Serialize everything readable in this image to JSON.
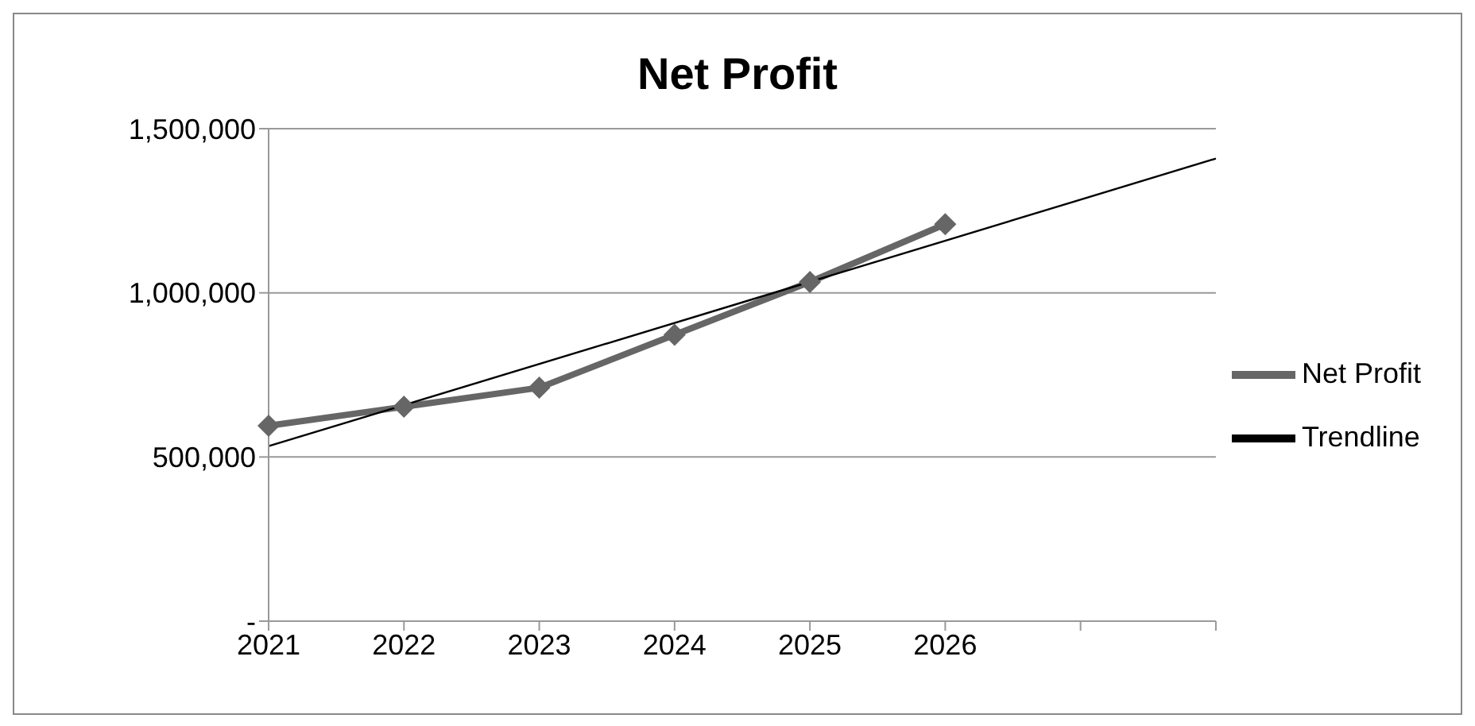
{
  "chart_data": {
    "type": "line",
    "title": "Net Profit",
    "categories": [
      "2021",
      "2022",
      "2023",
      "2024",
      "2025",
      "2026",
      null,
      null
    ],
    "series": [
      {
        "name": "Net Profit",
        "color": "#666666",
        "marker": "diamond",
        "values": [
          595000,
          653000,
          711000,
          872000,
          1033000,
          1209000,
          null,
          null
        ]
      },
      {
        "name": "Trendline",
        "color": "#000000",
        "marker": "none",
        "values": [
          533000,
          null,
          null,
          null,
          null,
          null,
          null,
          1409000
        ]
      }
    ],
    "ylim": [
      0,
      1500000
    ],
    "yticks": [
      {
        "value": 0,
        "label": "-"
      },
      {
        "value": 500000,
        "label": "500,000"
      },
      {
        "value": 1000000,
        "label": "1,000,000"
      },
      {
        "value": 1500000,
        "label": "1,500,000"
      }
    ],
    "grid": "y",
    "legend": "right"
  }
}
